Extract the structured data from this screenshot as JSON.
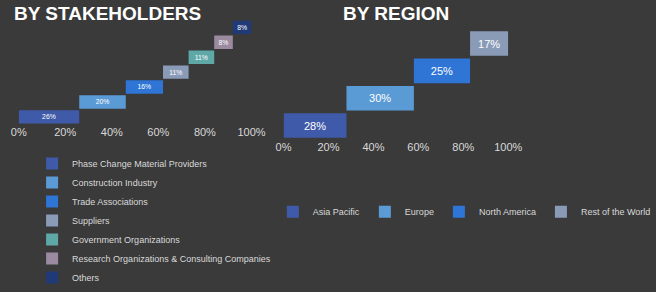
{
  "chart_data": [
    {
      "type": "waterfall",
      "title": "BY STAKEHOLDERS",
      "orientation": "horizontal",
      "data_labels": true,
      "tick_labels": "x",
      "grid": false,
      "legend": "bottom left",
      "xlim": [
        0,
        100
      ],
      "xticks": [
        {
          "value": 0,
          "label": "0%"
        },
        {
          "value": 20,
          "label": "20%"
        },
        {
          "value": 40,
          "label": "40%"
        },
        {
          "value": 60,
          "label": "60%"
        },
        {
          "value": 80,
          "label": "80%"
        },
        {
          "value": 100,
          "label": "100%"
        }
      ],
      "series": [
        {
          "name": "Phase Change Material Providers",
          "color": "#3f5aa8",
          "values": [
            26
          ],
          "value_labels": [
            "26%"
          ]
        },
        {
          "name": "Construction Industry",
          "color": "#5b9bd5",
          "values": [
            20
          ],
          "value_labels": [
            "20%"
          ]
        },
        {
          "name": "Trade Associations",
          "color": "#2e75d6",
          "values": [
            16
          ],
          "value_labels": [
            "16%"
          ]
        },
        {
          "name": "Suppliers",
          "color": "#8a9bb8",
          "values": [
            11
          ],
          "value_labels": [
            "11%"
          ]
        },
        {
          "name": "Government Organizations",
          "color": "#5fa8a8",
          "values": [
            11
          ],
          "value_labels": [
            "11%"
          ]
        },
        {
          "name": "Research Organizations & Consulting Companies",
          "color": "#9b8aa0",
          "values": [
            8
          ],
          "value_labels": [
            "8%"
          ]
        },
        {
          "name": "Others",
          "color": "#203a78",
          "values": [
            8
          ],
          "value_labels": [
            "8%"
          ]
        }
      ]
    },
    {
      "type": "waterfall",
      "title": "BY REGION",
      "orientation": "horizontal",
      "data_labels": true,
      "tick_labels": "x",
      "grid": false,
      "legend": "bottom",
      "xlim": [
        0,
        100
      ],
      "xticks": [
        {
          "value": 0,
          "label": "0%"
        },
        {
          "value": 20,
          "label": "20%"
        },
        {
          "value": 40,
          "label": "40%"
        },
        {
          "value": 60,
          "label": "60%"
        },
        {
          "value": 80,
          "label": "80%"
        },
        {
          "value": 100,
          "label": "100%"
        }
      ],
      "series": [
        {
          "name": "Asia Pacific",
          "color": "#3f5aa8",
          "values": [
            28
          ],
          "value_labels": [
            "28%"
          ]
        },
        {
          "name": "Europe",
          "color": "#5b9bd5",
          "values": [
            30
          ],
          "value_labels": [
            "30%"
          ]
        },
        {
          "name": "North America",
          "color": "#2e75d6",
          "values": [
            25
          ],
          "value_labels": [
            "25%"
          ]
        },
        {
          "name": "Rest of the World",
          "color": "#8a9bb8",
          "values": [
            17
          ],
          "value_labels": [
            "17%"
          ]
        }
      ]
    }
  ]
}
